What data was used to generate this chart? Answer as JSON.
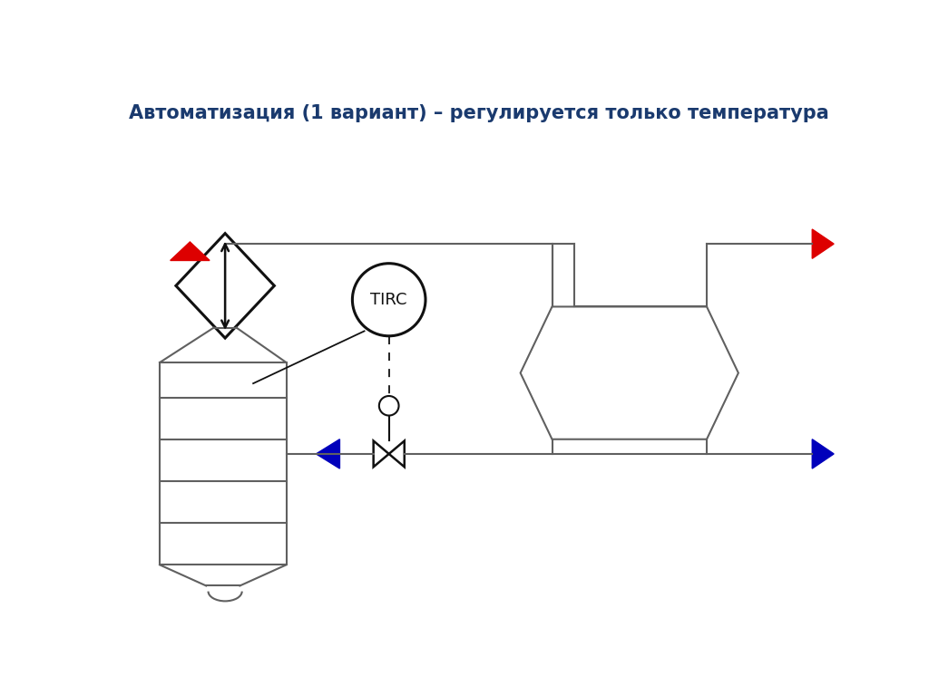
{
  "title": "Автоматизация (1 вариант) – регулируется только температура",
  "title_color": "#1a3a6e",
  "title_fontsize": 15,
  "bg_color": "#ffffff",
  "line_color": "#606060",
  "line_width": 1.5,
  "red_color": "#dd0000",
  "blue_color": "#0000bb",
  "black_color": "#111111"
}
